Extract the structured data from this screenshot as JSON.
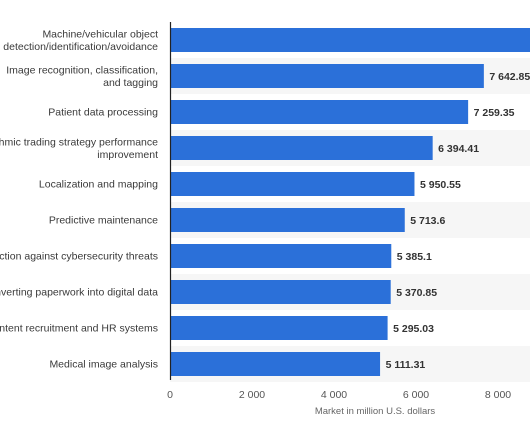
{
  "chart_data": {
    "type": "bar",
    "orientation": "horizontal",
    "categories": [
      [
        "Machine/vehicular object",
        "detection/identification/avoidance"
      ],
      [
        "Image recognition, classification,",
        "and tagging"
      ],
      [
        "Patient data processing"
      ],
      [
        "Algorithmic trading strategy performance",
        "improvement"
      ],
      [
        "Localization and mapping"
      ],
      [
        "Predictive maintenance"
      ],
      [
        "Protection against cybersecurity threats"
      ],
      [
        "Converting paperwork into digital data"
      ],
      [
        "Content recruitment and HR systems"
      ],
      [
        "Medical image analysis"
      ]
    ],
    "values": [
      9000,
      7642.85,
      7259.35,
      6394.41,
      5950.55,
      5713.6,
      5385.1,
      5370.85,
      5295.03,
      5111.31
    ],
    "value_labels": [
      "",
      "7 642.85",
      "7 259.35",
      "6 394.41",
      "5 950.55",
      "5 713.6",
      "5 385.1",
      "5 370.85",
      "5 295.03",
      "5 111.31"
    ],
    "xlabel": "Market in million U.S. dollars",
    "xlim": [
      0,
      8000
    ],
    "x_ticks": [
      0,
      2000,
      4000,
      6000,
      8000
    ],
    "x_tick_labels": [
      "0",
      "2 000",
      "4 000",
      "6 000",
      "8 000"
    ],
    "bar_color": "#2b70d9",
    "alt_row_color": "#f6f6f6",
    "axis_color": "#222222",
    "grid": false
  }
}
